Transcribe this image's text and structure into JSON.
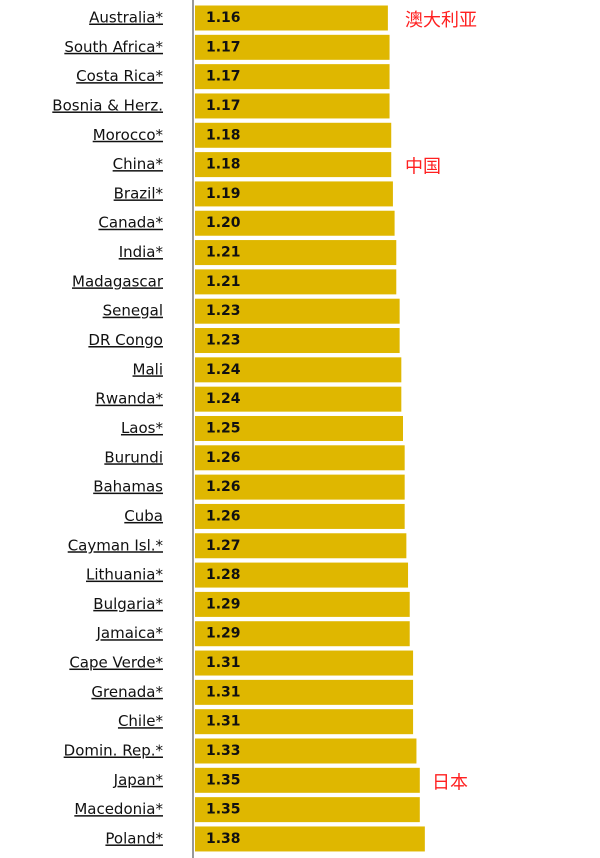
{
  "chart_data": {
    "type": "barh",
    "categories": [
      "Australia*",
      "South Africa*",
      "Costa Rica*",
      "Bosnia & Herz.",
      "Morocco*",
      "China*",
      "Brazil*",
      "Canada*",
      "India*",
      "Madagascar",
      "Senegal",
      "DR Congo",
      "Mali",
      "Rwanda*",
      "Laos*",
      "Burundi",
      "Bahamas",
      "Cuba",
      "Cayman Isl.*",
      "Lithuania*",
      "Bulgaria*",
      "Jamaica*",
      "Cape Verde*",
      "Grenada*",
      "Chile*",
      "Domin. Rep.*",
      "Japan*",
      "Macedonia*",
      "Poland*"
    ],
    "values": [
      1.16,
      1.17,
      1.17,
      1.17,
      1.18,
      1.18,
      1.19,
      1.2,
      1.21,
      1.21,
      1.23,
      1.23,
      1.24,
      1.24,
      1.25,
      1.26,
      1.26,
      1.26,
      1.27,
      1.28,
      1.29,
      1.29,
      1.31,
      1.31,
      1.31,
      1.33,
      1.35,
      1.35,
      1.38
    ],
    "value_labels": [
      "1.16",
      "1.17",
      "1.17",
      "1.17",
      "1.18",
      "1.18",
      "1.19",
      "1.20",
      "1.21",
      "1.21",
      "1.23",
      "1.23",
      "1.24",
      "1.24",
      "1.25",
      "1.26",
      "1.26",
      "1.26",
      "1.27",
      "1.28",
      "1.29",
      "1.29",
      "1.31",
      "1.31",
      "1.31",
      "1.33",
      "1.35",
      "1.35",
      "1.38"
    ],
    "color": "#dfb700",
    "xlim": [
      0,
      2
    ],
    "annotations": [
      "澳大利亚",
      "中国",
      "日本"
    ],
    "annotation_color": "#ff2020"
  }
}
